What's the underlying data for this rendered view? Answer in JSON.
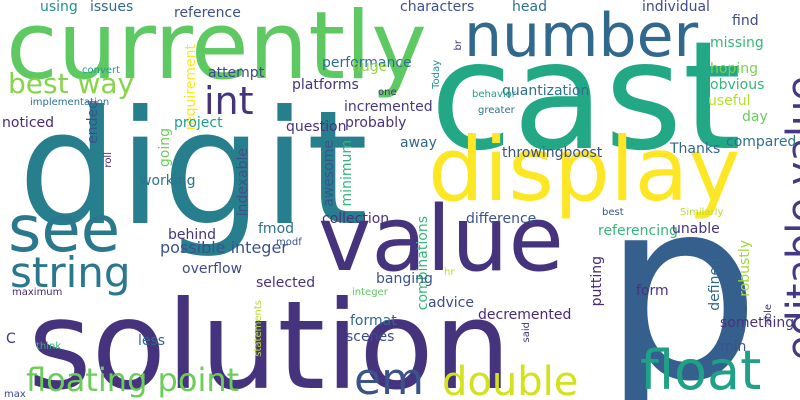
{
  "palette": {
    "dark_purple": "#46337e",
    "indigo": "#443a83",
    "deep_blue": "#365c8d",
    "blue": "#31688e",
    "slate_blue": "#2f6c8e",
    "teal": "#21918c",
    "dark_teal": "#277f8e",
    "green_teal": "#1fa187",
    "green": "#35b779",
    "light_green": "#5ec962",
    "lime": "#a0da39",
    "yellow": "#fde725",
    "violet": "#482878"
  },
  "words": [
    {
      "text": "p",
      "color": "#355f8d"
    },
    {
      "text": "solution",
      "color": "#46337e"
    },
    {
      "text": "digit",
      "color": "#277f8e"
    },
    {
      "text": "cast",
      "color": "#22a884"
    },
    {
      "text": "currently",
      "color": "#5ec962"
    },
    {
      "text": "display",
      "color": "#fde725"
    },
    {
      "text": "value",
      "color": "#46337e"
    },
    {
      "text": "see",
      "color": "#2a788e"
    },
    {
      "text": "number",
      "color": "#31688e"
    },
    {
      "text": "editable value",
      "color": "#443a83"
    },
    {
      "text": "float",
      "color": "#1fa187"
    },
    {
      "text": "string",
      "color": "#2a788e"
    },
    {
      "text": "double",
      "color": "#d2e21b"
    },
    {
      "text": "floating point",
      "color": "#6ccd5a"
    },
    {
      "text": "em",
      "color": "#3b528b"
    },
    {
      "text": "int",
      "color": "#46337e"
    },
    {
      "text": "best way",
      "color": "#86d549"
    },
    {
      "text": "possible integer",
      "color": "#3b528b"
    },
    {
      "text": "incremented",
      "color": "#443a83"
    },
    {
      "text": "quantization",
      "color": "#2c728e"
    },
    {
      "text": "probably",
      "color": "#46337e"
    },
    {
      "text": "collection",
      "color": "#46337e"
    },
    {
      "text": "difference",
      "color": "#3b528b"
    },
    {
      "text": "decremented",
      "color": "#482878"
    },
    {
      "text": "throwingboost",
      "color": "#3b528b"
    },
    {
      "text": "characters",
      "color": "#3b528b"
    },
    {
      "text": "reference",
      "color": "#3b528b"
    },
    {
      "text": "individual",
      "color": "#3e4a89"
    },
    {
      "text": "head",
      "color": "#2c728e"
    },
    {
      "text": "issues",
      "color": "#31688e"
    },
    {
      "text": "using",
      "color": "#21918c"
    },
    {
      "text": "find",
      "color": "#3e4a89"
    },
    {
      "text": "missing",
      "color": "#35b779"
    },
    {
      "text": "hoping",
      "color": "#7ad151"
    },
    {
      "text": "obvious",
      "color": "#35b779"
    },
    {
      "text": "useful",
      "color": "#b5de2b"
    },
    {
      "text": "day",
      "color": "#6ccd5a"
    },
    {
      "text": "compared",
      "color": "#2c728e"
    },
    {
      "text": "Thanks",
      "color": "#31688e"
    },
    {
      "text": "performance",
      "color": "#2c728e"
    },
    {
      "text": "huge",
      "color": "#8fd744"
    },
    {
      "text": "one",
      "color": "#482878"
    },
    {
      "text": "platforms",
      "color": "#46337e"
    },
    {
      "text": "requirement",
      "color": "#fde725"
    },
    {
      "text": "attempt",
      "color": "#3e4a89"
    },
    {
      "text": "convert",
      "color": "#1f9e89"
    },
    {
      "text": "implementation",
      "color": "#2c728e"
    },
    {
      "text": "noticed",
      "color": "#482878"
    },
    {
      "text": "ended",
      "color": "#3b528b"
    },
    {
      "text": "project",
      "color": "#1f9e89"
    },
    {
      "text": "question",
      "color": "#46337e"
    },
    {
      "text": "away",
      "color": "#31688e"
    },
    {
      "text": "going",
      "color": "#6ccd5a"
    },
    {
      "text": "working",
      "color": "#2c728e"
    },
    {
      "text": "roll",
      "color": "#482878"
    },
    {
      "text": "minimum",
      "color": "#35b779"
    },
    {
      "text": "awesome",
      "color": "#3b528b"
    },
    {
      "text": "indexable",
      "color": "#3b528b"
    },
    {
      "text": "combinations",
      "color": "#35b779"
    },
    {
      "text": "behind",
      "color": "#46337e"
    },
    {
      "text": "fmod",
      "color": "#2c728e"
    },
    {
      "text": "modf",
      "color": "#3b528b"
    },
    {
      "text": "overflow",
      "color": "#3e4a89"
    },
    {
      "text": "selected",
      "color": "#46337e"
    },
    {
      "text": "banging",
      "color": "#3b528b"
    },
    {
      "text": "format",
      "color": "#31688e"
    },
    {
      "text": "scenes",
      "color": "#3e4a89"
    },
    {
      "text": "advice",
      "color": "#3e4a89"
    },
    {
      "text": "hr",
      "color": "#b5de2b"
    },
    {
      "text": "putting",
      "color": "#482878"
    },
    {
      "text": "referencing",
      "color": "#35b779"
    },
    {
      "text": "unable",
      "color": "#46337e"
    },
    {
      "text": "best",
      "color": "#3b528b"
    },
    {
      "text": "Similarly",
      "color": "#b5de2b"
    },
    {
      "text": "defined",
      "color": "#31688e"
    },
    {
      "text": "robustly",
      "color": "#a0da39"
    },
    {
      "text": "something",
      "color": "#46337e"
    },
    {
      "text": "form",
      "color": "#46337e"
    },
    {
      "text": "able",
      "color": "#46337e"
    },
    {
      "text": "min",
      "color": "#3b528b"
    },
    {
      "text": "said",
      "color": "#46337e"
    },
    {
      "text": "less",
      "color": "#31688e"
    },
    {
      "text": "C",
      "color": "#46337e"
    },
    {
      "text": "think",
      "color": "#35b779"
    },
    {
      "text": "max",
      "color": "#3e4a89"
    },
    {
      "text": "maximum",
      "color": "#482878"
    },
    {
      "text": "statements",
      "color": "#b5de2b"
    },
    {
      "text": "integer",
      "color": "#5ec962"
    },
    {
      "text": "behavior",
      "color": "#1f9e89"
    },
    {
      "text": "greater",
      "color": "#2c728e"
    },
    {
      "text": "br",
      "color": "#46337e"
    },
    {
      "text": "Today",
      "color": "#21918c"
    },
    {
      "text": "detect",
      "color": "#2c728e"
    }
  ]
}
